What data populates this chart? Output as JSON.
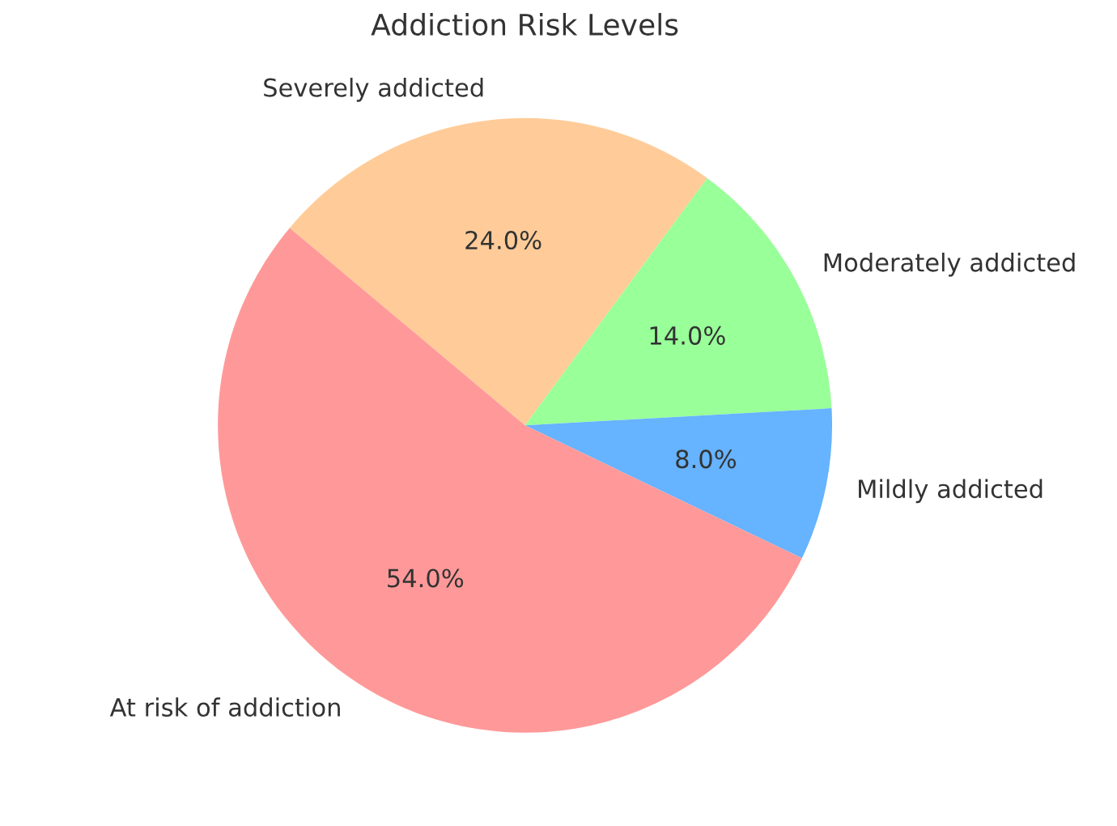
{
  "chart_data": {
    "type": "pie",
    "title": "Addiction Risk Levels",
    "categories": [
      "Severely addicted",
      "Moderately addicted",
      "Mildly addicted",
      "At risk of addiction"
    ],
    "values": [
      24,
      14,
      8,
      54
    ],
    "value_labels": [
      "24.0%",
      "14.0%",
      "8.0%",
      "54.0%"
    ],
    "colors": [
      "#ffcc99",
      "#99ff99",
      "#66b3ff",
      "#ff9999"
    ]
  }
}
